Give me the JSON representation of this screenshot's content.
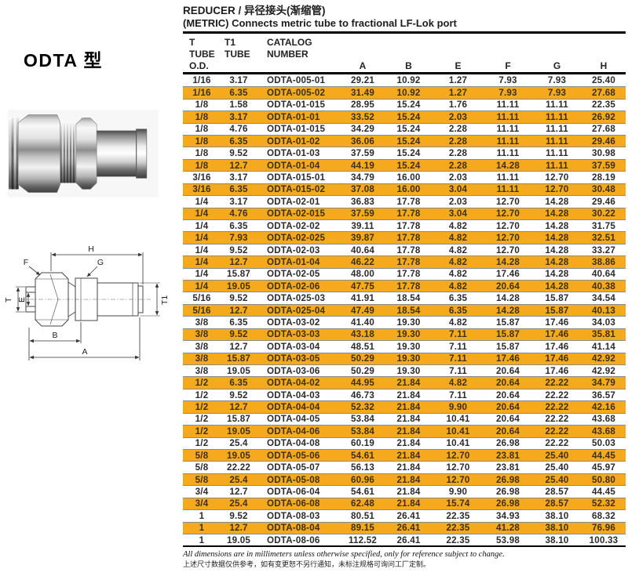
{
  "page": {
    "title_line1": "REDUCER /  异径接头(渐缩管)",
    "title_line2": "(METRIC) Connects metric tube to fractional LF-Lok port"
  },
  "left": {
    "model_label": "ODTA 型"
  },
  "diagram": {
    "labels": {
      "A": "A",
      "B": "B",
      "E": "E",
      "F": "F",
      "G": "G",
      "H": "H",
      "T": "T",
      "T1": "T1"
    }
  },
  "table": {
    "header_rows": [
      [
        "T",
        "T1",
        "CATALOG",
        "",
        "",
        "",
        "",
        "",
        ""
      ],
      [
        "TUBE",
        "TUBE",
        "NUMBER",
        "",
        "",
        "",
        "",
        "",
        ""
      ],
      [
        "O.D.",
        "",
        "",
        "A",
        "B",
        "E",
        "F",
        "G",
        "H"
      ]
    ],
    "rows": [
      [
        "1/16",
        "3.17",
        "ODTA-005-01",
        "29.21",
        "10.92",
        "1.27",
        "7.93",
        "7.93",
        "25.40"
      ],
      [
        "1/16",
        "6.35",
        "ODTA-005-02",
        "31.49",
        "10.92",
        "1.27",
        "7.93",
        "7.93",
        "27.68"
      ],
      [
        "1/8",
        "1.58",
        "ODTA-01-015",
        "28.95",
        "15.24",
        "1.76",
        "11.11",
        "11.11",
        "22.35"
      ],
      [
        "1/8",
        "3.17",
        "ODTA-01-01",
        "33.52",
        "15.24",
        "2.03",
        "11.11",
        "11.11",
        "26.92"
      ],
      [
        "1/8",
        "4.76",
        "ODTA-01-015",
        "34.29",
        "15.24",
        "2.28",
        "11.11",
        "11.11",
        "27.68"
      ],
      [
        "1/8",
        "6.35",
        "ODTA-01-02",
        "36.06",
        "15.24",
        "2.28",
        "11.11",
        "11.11",
        "29.46"
      ],
      [
        "1/8",
        "9.52",
        "ODTA-01-03",
        "37.59",
        "15.24",
        "2.28",
        "11.11",
        "11.11",
        "30.98"
      ],
      [
        "1/8",
        "12.7",
        "ODTA-01-04",
        "44.19",
        "15.24",
        "2.28",
        "14.28",
        "11.11",
        "37.59"
      ],
      [
        "3/16",
        "3.17",
        "ODTA-015-01",
        "34.79",
        "16.00",
        "2.03",
        "11.11",
        "12.70",
        "28.19"
      ],
      [
        "3/16",
        "6.35",
        "ODTA-015-02",
        "37.08",
        "16.00",
        "3.04",
        "11.11",
        "12.70",
        "30.48"
      ],
      [
        "1/4",
        "3.17",
        "ODTA-02-01",
        "36.83",
        "17.78",
        "2.03",
        "12.70",
        "14.28",
        "29.46"
      ],
      [
        "1/4",
        "4.76",
        "ODTA-02-015",
        "37.59",
        "17.78",
        "3.04",
        "12.70",
        "14.28",
        "30.22"
      ],
      [
        "1/4",
        "6.35",
        "ODTA-02-02",
        "39.11",
        "17.78",
        "4.82",
        "12.70",
        "14.28",
        "31.75"
      ],
      [
        "1/4",
        "7.93",
        "ODTA-02-025",
        "39.87",
        "17.78",
        "4.82",
        "12.70",
        "14.28",
        "32.51"
      ],
      [
        "1/4",
        "9.52",
        "ODTA-02-03",
        "40.64",
        "17.78",
        "4.82",
        "12.70",
        "14.28",
        "33.27"
      ],
      [
        "1/4",
        "12.7",
        "ODTA-01-04",
        "46.22",
        "17.78",
        "4.82",
        "14.28",
        "14.28",
        "38.86"
      ],
      [
        "1/4",
        "15.87",
        "ODTA-02-05",
        "48.00",
        "17.78",
        "4.82",
        "17.46",
        "14.28",
        "40.64"
      ],
      [
        "1/4",
        "19.05",
        "ODTA-02-06",
        "47.75",
        "17.78",
        "4.82",
        "20.64",
        "14.28",
        "40.38"
      ],
      [
        "5/16",
        "9.52",
        "ODTA-025-03",
        "41.91",
        "18.54",
        "6.35",
        "14.28",
        "15.87",
        "34.54"
      ],
      [
        "5/16",
        "12.7",
        "ODTA-025-04",
        "47.49",
        "18.54",
        "6.35",
        "14.28",
        "15.87",
        "40.13"
      ],
      [
        "3/8",
        "6.35",
        "ODTA-03-02",
        "41.40",
        "19.30",
        "4.82",
        "15.87",
        "17.46",
        "34.03"
      ],
      [
        "3/8",
        "9.52",
        "ODTA-03-03",
        "43.18",
        "19.30",
        "7.11",
        "15.87",
        "17.46",
        "35.81"
      ],
      [
        "3/8",
        "12.7",
        "ODTA-03-04",
        "48.51",
        "19.30",
        "7.11",
        "15.87",
        "17.46",
        "41.14"
      ],
      [
        "3/8",
        "15.87",
        "ODTA-03-05",
        "50.29",
        "19.30",
        "7.11",
        "17.46",
        "17.46",
        "42.92"
      ],
      [
        "3/8",
        "19.05",
        "ODTA-03-06",
        "50.29",
        "19.30",
        "7.11",
        "20.64",
        "17.46",
        "42.92"
      ],
      [
        "1/2",
        "6.35",
        "ODTA-04-02",
        "44.95",
        "21.84",
        "4.82",
        "20.64",
        "22.22",
        "34.79"
      ],
      [
        "1/2",
        "9.52",
        "ODTA-04-03",
        "46.73",
        "21.84",
        "7.11",
        "20.64",
        "22.22",
        "36.57"
      ],
      [
        "1/2",
        "12.7",
        "ODTA-04-04",
        "52.32",
        "21.84",
        "9.90",
        "20.64",
        "22.22",
        "42.16"
      ],
      [
        "1/2",
        "15.87",
        "ODTA-04-05",
        "53.84",
        "21.84",
        "10.41",
        "20.64",
        "22.22",
        "43.68"
      ],
      [
        "1/2",
        "19.05",
        "ODTA-04-06",
        "53.84",
        "21.84",
        "10.41",
        "20.64",
        "22.22",
        "43.68"
      ],
      [
        "1/2",
        "25.4",
        "ODTA-04-08",
        "60.19",
        "21.84",
        "10.41",
        "26.98",
        "22.22",
        "50.03"
      ],
      [
        "5/8",
        "19.05",
        "ODTA-05-06",
        "54.61",
        "21.84",
        "12.70",
        "23.81",
        "25.40",
        "44.45"
      ],
      [
        "5/8",
        "22.22",
        "ODTA-05-07",
        "56.13",
        "21.84",
        "12.70",
        "23.81",
        "25.40",
        "45.97"
      ],
      [
        "5/8",
        "25.4",
        "ODTA-05-08",
        "60.96",
        "21.84",
        "12.70",
        "26.98",
        "25.40",
        "50.80"
      ],
      [
        "3/4",
        "12.7",
        "ODTA-06-04",
        "54.61",
        "21.84",
        "9.90",
        "26.98",
        "28.57",
        "44.45"
      ],
      [
        "3/4",
        "25.4",
        "ODTA-06-08",
        "62.48",
        "21.84",
        "15.74",
        "26.98",
        "28.57",
        "52.32"
      ],
      [
        "1",
        "9.52",
        "ODTA-08-03",
        "80.51",
        "26.41",
        "22.35",
        "34.93",
        "38.10",
        "68.32"
      ],
      [
        "1",
        "12.7",
        "ODTA-08-04",
        "89.15",
        "26.41",
        "22.35",
        "41.28",
        "38.10",
        "76.96"
      ],
      [
        "1",
        "19.05",
        "ODTA-08-06",
        "112.52",
        "26.41",
        "22.35",
        "53.98",
        "38.10",
        "100.33"
      ]
    ]
  },
  "footer": {
    "note_en": "All dimensions are in millimeters unless otherwise specified, only for reference subject to change.",
    "note_zh": "上述尺寸数据仅供参考，如有变更恕不另行通知，未标注规格可询问工厂定制。"
  },
  "colors": {
    "row_highlight": "#F4AA1C",
    "separator": "#8a8a8a",
    "rule": "#000000"
  }
}
